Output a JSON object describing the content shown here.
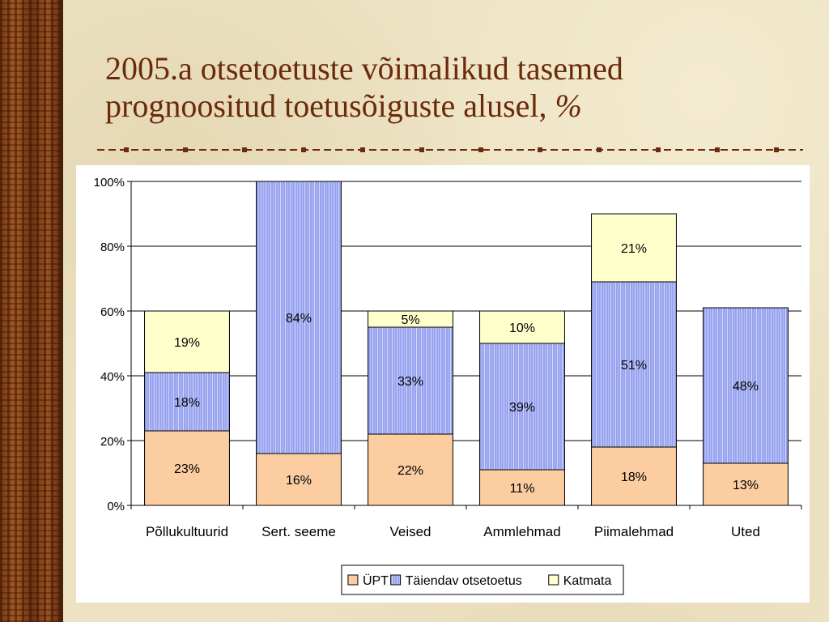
{
  "slide": {
    "title_line1": "2005.a otsetoetuste võimalikud tasemed",
    "title_line2": "prognoositud toetusõiguste alusel,",
    "title_pct": "%"
  },
  "colors": {
    "title": "#6b2a0a",
    "upt": "#fbcda0",
    "taiendav": "#98a4ef",
    "katmata": "#ffffcc",
    "divider": "#6b2a0a"
  },
  "chart_data": {
    "type": "bar",
    "stacked": true,
    "categories": [
      "Põllukultuurid",
      "Sert. seeme",
      "Veised",
      "Ammlehmad",
      "Piimalehmad",
      "Uted"
    ],
    "series": [
      {
        "name": "ÜPT",
        "values": [
          23,
          16,
          22,
          11,
          18,
          13
        ],
        "labels": [
          "23%",
          "16%",
          "22%",
          "11%",
          "18%",
          "13%"
        ],
        "color": "#fbcda0"
      },
      {
        "name": "Täiendav otsetoetus",
        "values": [
          18,
          84,
          33,
          39,
          51,
          48
        ],
        "labels": [
          "18%",
          "84%",
          "33%",
          "39%",
          "51%",
          "48%"
        ],
        "color": "#98a4ef"
      },
      {
        "name": "Katmata",
        "values": [
          19,
          0,
          5,
          10,
          21,
          0
        ],
        "labels": [
          "19%",
          "",
          "5%",
          "10%",
          "21%",
          ""
        ],
        "color": "#ffffcc"
      }
    ],
    "ylim": [
      0,
      100
    ],
    "yticks": [
      "0%",
      "20%",
      "40%",
      "60%",
      "80%",
      "100%"
    ],
    "gridlines": true,
    "legend_position": "bottom"
  }
}
